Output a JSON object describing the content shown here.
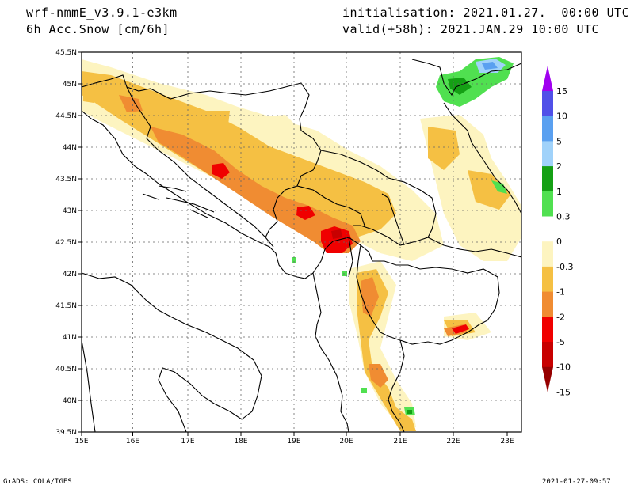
{
  "header": {
    "model": "wrf-nmmE_v3.9.1-e3km",
    "field": "6h Acc.Snow [cm/6h]",
    "init": "initialisation: 2021.01.27.  00:00 UTC",
    "valid": "valid(+58h): 2021.JAN.29 10:00 UTC"
  },
  "axes": {
    "lon_labels": [
      "15E",
      "16E",
      "17E",
      "18E",
      "19E",
      "20E",
      "21E",
      "22E",
      "23E"
    ],
    "lat_labels": [
      "45.5N",
      "45N",
      "44.5N",
      "44N",
      "43.5N",
      "43N",
      "42.5N",
      "42N",
      "41.5N",
      "41N",
      "40.5N",
      "40N",
      "39.5N"
    ],
    "lon_range": [
      15,
      23.3
    ],
    "lat_range": [
      39.5,
      45.5
    ]
  },
  "colorbar": {
    "labels": [
      "15",
      "10",
      "5",
      "2",
      "1",
      "0.3",
      "0",
      "-0.3",
      "-1",
      "-2",
      "-5",
      "-10",
      "-15"
    ],
    "colors": [
      "#a000f0",
      "#5050e8",
      "#5aa0f0",
      "#a0d2fa",
      "#14a014",
      "#50e050",
      "#ffffff",
      "#fdf4c0",
      "#f5c043",
      "#f08c32",
      "#f00000",
      "#c80000",
      "#960000"
    ]
  },
  "footer": {
    "left": "GrADS: COLA/IGES",
    "right": "2021-01-27-09:57"
  }
}
